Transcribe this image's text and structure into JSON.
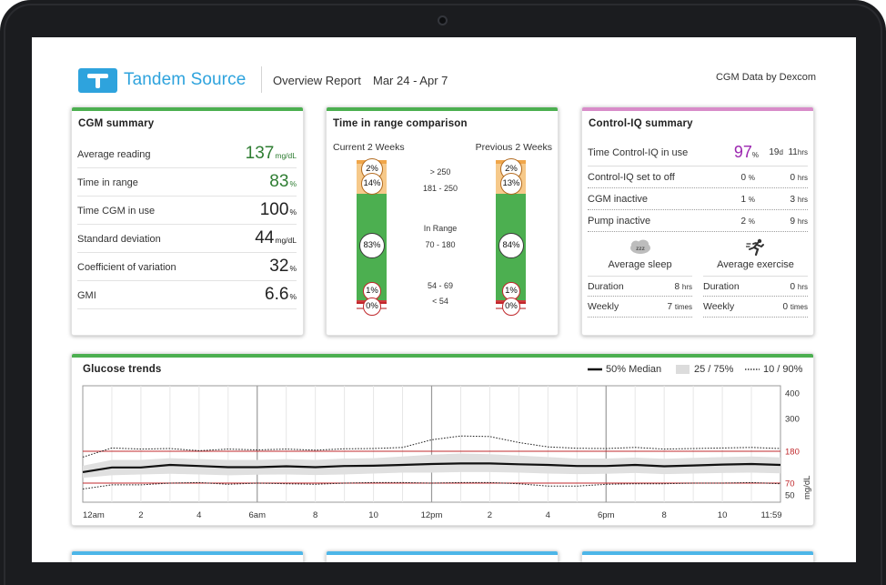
{
  "header": {
    "brand": "Tandem Source",
    "report_title": "Overview Report",
    "date_range": "Mar 24 - Apr 7",
    "source": "CGM Data by Dexcom"
  },
  "colors": {
    "green": "#4caf50",
    "pink": "#d88cc9",
    "blue": "#2ea3dd",
    "purple": "#9c27b0",
    "orange": "#f3c17f",
    "red": "#c0282c"
  },
  "cgm_summary": {
    "title": "CGM summary",
    "rows": [
      {
        "label": "Average reading",
        "value": "137",
        "unit": "mg/dL",
        "color": "#2e7d32"
      },
      {
        "label": "Time in range",
        "value": "83",
        "unit": "%",
        "color": "#2e7d32"
      },
      {
        "label": "Time CGM in use",
        "value": "100",
        "unit": "%",
        "color": "#222222"
      },
      {
        "label": "Standard deviation",
        "value": "44",
        "unit": "mg/dL",
        "color": "#222222"
      },
      {
        "label": "Coefficient of variation",
        "value": "32",
        "unit": "%",
        "color": "#222222"
      },
      {
        "label": "GMI",
        "value": "6.6",
        "unit": "%",
        "color": "#222222"
      }
    ]
  },
  "tir_comparison": {
    "title": "Time in range comparison",
    "current_label": "Current 2 Weeks",
    "previous_label": "Previous 2 Weeks",
    "ranges": {
      "very_high": "> 250",
      "high": "181 - 250",
      "in_range_label": "In Range",
      "in_range": "70 - 180",
      "low": "54 - 69",
      "very_low": "< 54"
    },
    "current": {
      "very_high": "2%",
      "high": "14%",
      "in_range": "83%",
      "low": "1%",
      "very_low": "0%"
    },
    "previous": {
      "very_high": "2%",
      "high": "13%",
      "in_range": "84%",
      "low": "1%",
      "very_low": "0%"
    }
  },
  "control_iq": {
    "title": "Control-IQ summary",
    "time_in_use": {
      "label": "Time Control-IQ in use",
      "percent": "97",
      "percent_unit": "%",
      "days": "19",
      "days_unit": "d",
      "hours": "11",
      "hours_unit": "hrs"
    },
    "rows": [
      {
        "label": "Control-IQ set to off",
        "percent": "0",
        "percent_unit": "%",
        "hours": "0",
        "hours_unit": "hrs"
      },
      {
        "label": "CGM inactive",
        "percent": "1",
        "percent_unit": "%",
        "hours": "3",
        "hours_unit": "hrs"
      },
      {
        "label": "Pump inactive",
        "percent": "2",
        "percent_unit": "%",
        "hours": "9",
        "hours_unit": "hrs"
      }
    ],
    "sleep": {
      "title": "Average sleep",
      "icon": "sleep-zzz-icon",
      "duration_label": "Duration",
      "duration": "8",
      "duration_unit": "hrs",
      "weekly_label": "Weekly",
      "weekly": "7",
      "weekly_unit": "times"
    },
    "exercise": {
      "title": "Average exercise",
      "icon": "running-person-icon",
      "duration_label": "Duration",
      "duration": "0",
      "duration_unit": "hrs",
      "weekly_label": "Weekly",
      "weekly": "0",
      "weekly_unit": "times"
    }
  },
  "glucose_trends": {
    "title": "Glucose trends",
    "legend": {
      "median": "50% Median",
      "iqr": "25 / 75%",
      "outer": "10 / 90%"
    }
  },
  "chart_data": {
    "type": "line",
    "title": "Glucose trends",
    "ylabel": "mg/dL",
    "xlabel": "",
    "x_ticks": [
      "12am",
      "2",
      "4",
      "6am",
      "8",
      "10",
      "12pm",
      "2",
      "4",
      "6pm",
      "8",
      "10",
      "11:59"
    ],
    "y_ticks": [
      "400",
      "300",
      "180",
      "70",
      "50"
    ],
    "ylim": [
      40,
      400
    ],
    "target_range": [
      70,
      180
    ],
    "x_hours": [
      0,
      1,
      2,
      3,
      4,
      5,
      6,
      7,
      8,
      9,
      10,
      11,
      12,
      13,
      14,
      15,
      16,
      17,
      18,
      19,
      20,
      21,
      22,
      23,
      24
    ],
    "series": [
      {
        "name": "50% Median",
        "values": [
          108,
          124,
          124,
          133,
          129,
          125,
          125,
          128,
          125,
          129,
          130,
          133,
          136,
          138,
          138,
          135,
          133,
          129,
          129,
          133,
          128,
          131,
          134,
          136,
          133
        ]
      },
      {
        "name": "25 / 75%",
        "lower": [
          88,
          97,
          100,
          102,
          100,
          97,
          99,
          100,
          98,
          100,
          103,
          106,
          106,
          108,
          108,
          106,
          103,
          101,
          102,
          105,
          101,
          103,
          105,
          106,
          104
        ],
        "upper": [
          130,
          150,
          150,
          156,
          153,
          150,
          150,
          153,
          150,
          155,
          156,
          162,
          168,
          172,
          170,
          165,
          160,
          155,
          155,
          158,
          154,
          157,
          160,
          162,
          159
        ]
      },
      {
        "name": "10 / 90%",
        "lower": [
          60,
          67,
          67,
          70,
          72,
          68,
          70,
          69,
          68,
          70,
          72,
          72,
          70,
          72,
          72,
          69,
          65,
          65,
          68,
          69,
          69,
          70,
          70,
          72,
          69
        ],
        "upper": [
          160,
          192,
          188,
          190,
          182,
          188,
          185,
          188,
          184,
          189,
          190,
          194,
          222,
          236,
          234,
          212,
          196,
          191,
          190,
          194,
          188,
          190,
          192,
          194,
          190
        ]
      }
    ]
  }
}
